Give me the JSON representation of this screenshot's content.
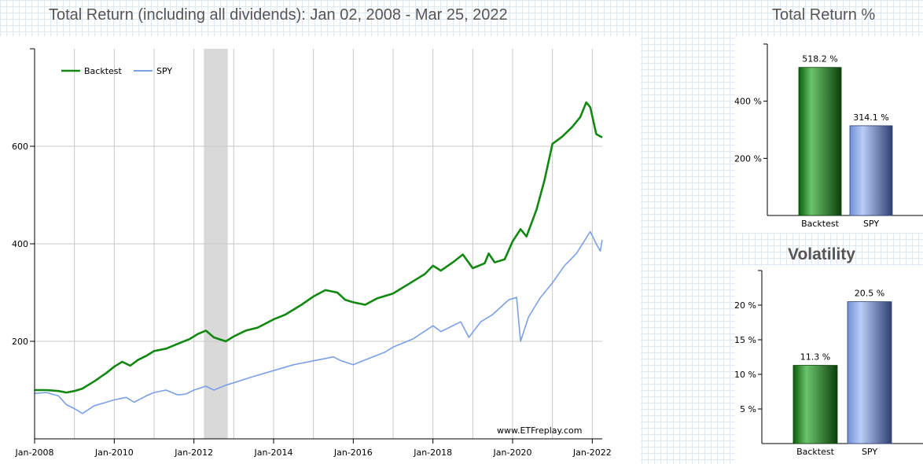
{
  "titles": {
    "main": "Total Return (including all dividends): Jan 02, 2008 - Mar 25, 2022",
    "total_return": "Total Return %",
    "volatility": "Volatility"
  },
  "watermark": "www.ETFreplay.com",
  "colors": {
    "backtest": "#118811",
    "spy": "#7ba0e8",
    "grid": "#c8c8c8",
    "shade": "#d9d9d9"
  },
  "chart_data": [
    {
      "type": "line",
      "title": "Total Return (including all dividends): Jan 02, 2008 - Mar 25, 2022",
      "xlabel": "",
      "ylabel": "",
      "x_range": [
        2008.0,
        2022.25
      ],
      "ylim": [
        0,
        800
      ],
      "x_ticks": [
        {
          "x": 2008,
          "label": "Jan-2008"
        },
        {
          "x": 2010,
          "label": "Jan-2010"
        },
        {
          "x": 2012,
          "label": "Jan-2012"
        },
        {
          "x": 2014,
          "label": "Jan-2014"
        },
        {
          "x": 2016,
          "label": "Jan-2016"
        },
        {
          "x": 2018,
          "label": "Jan-2018"
        },
        {
          "x": 2020,
          "label": "Jan-2020"
        },
        {
          "x": 2022,
          "label": "Jan-2022"
        }
      ],
      "x_gridlines": [
        2008,
        2009,
        2010,
        2011,
        2012,
        2013,
        2014,
        2015,
        2016,
        2017,
        2018,
        2019,
        2020,
        2021,
        2022
      ],
      "y_ticks": [
        200,
        400,
        600
      ],
      "grid": true,
      "legend_position": "top-left",
      "shaded_region": [
        2012.25,
        2012.85
      ],
      "series": [
        {
          "name": "Backtest",
          "color": "#118811",
          "points": [
            [
              2008.0,
              100
            ],
            [
              2008.3,
              100
            ],
            [
              2008.6,
              98
            ],
            [
              2008.8,
              95
            ],
            [
              2009.0,
              98
            ],
            [
              2009.2,
              103
            ],
            [
              2009.5,
              118
            ],
            [
              2009.8,
              135
            ],
            [
              2010.0,
              148
            ],
            [
              2010.2,
              158
            ],
            [
              2010.4,
              150
            ],
            [
              2010.6,
              162
            ],
            [
              2010.8,
              170
            ],
            [
              2011.0,
              180
            ],
            [
              2011.3,
              185
            ],
            [
              2011.6,
              195
            ],
            [
              2011.9,
              205
            ],
            [
              2012.1,
              215
            ],
            [
              2012.3,
              222
            ],
            [
              2012.5,
              208
            ],
            [
              2012.8,
              200
            ],
            [
              2013.0,
              210
            ],
            [
              2013.3,
              222
            ],
            [
              2013.6,
              228
            ],
            [
              2014.0,
              245
            ],
            [
              2014.3,
              255
            ],
            [
              2014.7,
              275
            ],
            [
              2015.0,
              292
            ],
            [
              2015.3,
              305
            ],
            [
              2015.6,
              300
            ],
            [
              2015.8,
              285
            ],
            [
              2016.0,
              280
            ],
            [
              2016.3,
              275
            ],
            [
              2016.6,
              288
            ],
            [
              2017.0,
              298
            ],
            [
              2017.4,
              318
            ],
            [
              2017.8,
              338
            ],
            [
              2018.0,
              355
            ],
            [
              2018.2,
              345
            ],
            [
              2018.5,
              362
            ],
            [
              2018.75,
              378
            ],
            [
              2019.0,
              350
            ],
            [
              2019.3,
              360
            ],
            [
              2019.4,
              380
            ],
            [
              2019.55,
              362
            ],
            [
              2019.8,
              368
            ],
            [
              2020.0,
              405
            ],
            [
              2020.2,
              430
            ],
            [
              2020.35,
              415
            ],
            [
              2020.6,
              470
            ],
            [
              2020.8,
              530
            ],
            [
              2021.0,
              605
            ],
            [
              2021.25,
              620
            ],
            [
              2021.5,
              640
            ],
            [
              2021.7,
              660
            ],
            [
              2021.85,
              690
            ],
            [
              2021.95,
              680
            ],
            [
              2022.1,
              625
            ],
            [
              2022.25,
              618
            ]
          ]
        },
        {
          "name": "SPY",
          "color": "#7ba0e8",
          "points": [
            [
              2008.0,
              93
            ],
            [
              2008.3,
              95
            ],
            [
              2008.6,
              88
            ],
            [
              2008.8,
              70
            ],
            [
              2009.0,
              62
            ],
            [
              2009.2,
              52
            ],
            [
              2009.5,
              68
            ],
            [
              2009.8,
              75
            ],
            [
              2010.0,
              80
            ],
            [
              2010.3,
              85
            ],
            [
              2010.5,
              75
            ],
            [
              2010.8,
              88
            ],
            [
              2011.0,
              95
            ],
            [
              2011.3,
              100
            ],
            [
              2011.6,
              90
            ],
            [
              2011.8,
              92
            ],
            [
              2012.0,
              100
            ],
            [
              2012.3,
              108
            ],
            [
              2012.5,
              100
            ],
            [
              2012.8,
              110
            ],
            [
              2013.0,
              115
            ],
            [
              2013.5,
              128
            ],
            [
              2014.0,
              140
            ],
            [
              2014.5,
              152
            ],
            [
              2015.0,
              160
            ],
            [
              2015.5,
              168
            ],
            [
              2015.7,
              160
            ],
            [
              2016.0,
              152
            ],
            [
              2016.3,
              162
            ],
            [
              2016.8,
              178
            ],
            [
              2017.0,
              188
            ],
            [
              2017.5,
              205
            ],
            [
              2018.0,
              232
            ],
            [
              2018.2,
              220
            ],
            [
              2018.7,
              240
            ],
            [
              2018.9,
              208
            ],
            [
              2019.2,
              240
            ],
            [
              2019.5,
              255
            ],
            [
              2019.9,
              285
            ],
            [
              2020.1,
              290
            ],
            [
              2020.2,
              200
            ],
            [
              2020.4,
              250
            ],
            [
              2020.7,
              290
            ],
            [
              2021.0,
              320
            ],
            [
              2021.3,
              355
            ],
            [
              2021.6,
              380
            ],
            [
              2021.95,
              425
            ],
            [
              2022.1,
              400
            ],
            [
              2022.2,
              385
            ],
            [
              2022.25,
              408
            ]
          ]
        }
      ]
    },
    {
      "type": "bar",
      "title": "Total Return %",
      "categories": [
        "Backtest",
        "SPY"
      ],
      "values": [
        518.2,
        314.1
      ],
      "value_labels": [
        "518.2 %",
        "314.1 %"
      ],
      "ylim": [
        0,
        600
      ],
      "y_ticks": [
        {
          "value": 200,
          "label": "200 %"
        },
        {
          "value": 400,
          "label": "400 %"
        }
      ]
    },
    {
      "type": "bar",
      "title": "Volatility",
      "categories": [
        "Backtest",
        "SPY"
      ],
      "values": [
        11.3,
        20.5
      ],
      "value_labels": [
        "11.3 %",
        "20.5 %"
      ],
      "ylim": [
        0,
        25
      ],
      "y_ticks": [
        {
          "value": 5,
          "label": "5 %"
        },
        {
          "value": 10,
          "label": "10 %"
        },
        {
          "value": 15,
          "label": "15 %"
        },
        {
          "value": 20,
          "label": "20 %"
        }
      ]
    }
  ]
}
